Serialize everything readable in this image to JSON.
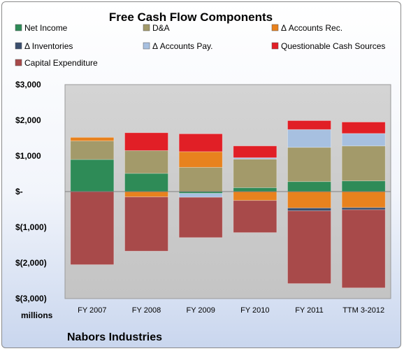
{
  "chart_data": {
    "type": "bar",
    "stacked": true,
    "title": "Free Cash Flow Components",
    "units_label": "millions",
    "company_label": "Nabors Industries",
    "categories": [
      "FY 2007",
      "FY 2008",
      "FY 2009",
      "FY 2010",
      "FY 2011",
      "TTM 3-2012"
    ],
    "ylim": [
      -3000,
      3000
    ],
    "yticks": [
      3000,
      2000,
      1000,
      0,
      -1000,
      -2000,
      -3000
    ],
    "ytick_labels": [
      "$3,000",
      "$2,000",
      "$1,000",
      "$-",
      "$(1,000)",
      "$(2,000)",
      "$(3,000)"
    ],
    "grid": false,
    "legend_position": "top",
    "series": [
      {
        "name": "Net Income",
        "color": "#2e8b57",
        "values": [
          900,
          510,
          -50,
          110,
          280,
          300
        ]
      },
      {
        "name": "D&A",
        "color": "#a39a6a",
        "values": [
          520,
          640,
          680,
          800,
          960,
          980
        ]
      },
      {
        "name": "Δ Accounts Rec.",
        "color": "#e8821e",
        "values": [
          100,
          -150,
          440,
          -250,
          -460,
          -450
        ]
      },
      {
        "name": "Δ Inventories",
        "color": "#3b4f6e",
        "values": [
          0,
          0,
          0,
          0,
          -80,
          -60
        ]
      },
      {
        "name": "Δ Accounts Pay.",
        "color": "#a7c0e0",
        "values": [
          0,
          0,
          -110,
          40,
          500,
          350
        ]
      },
      {
        "name": "Questionable Cash Sources",
        "color": "#e11f26",
        "values": [
          0,
          500,
          500,
          330,
          250,
          320
        ]
      },
      {
        "name": "Capital Expenditure",
        "color": "#a84a4a",
        "values": [
          -2050,
          -1520,
          -1130,
          -900,
          -2040,
          -2190
        ]
      }
    ]
  }
}
